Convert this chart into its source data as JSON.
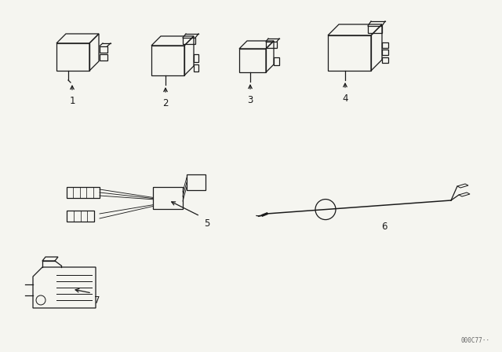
{
  "background_color": "#f5f5f0",
  "line_color": "#1a1a1a",
  "watermark": "000C77··",
  "items": [
    1,
    2,
    3,
    4,
    5,
    6,
    7
  ]
}
